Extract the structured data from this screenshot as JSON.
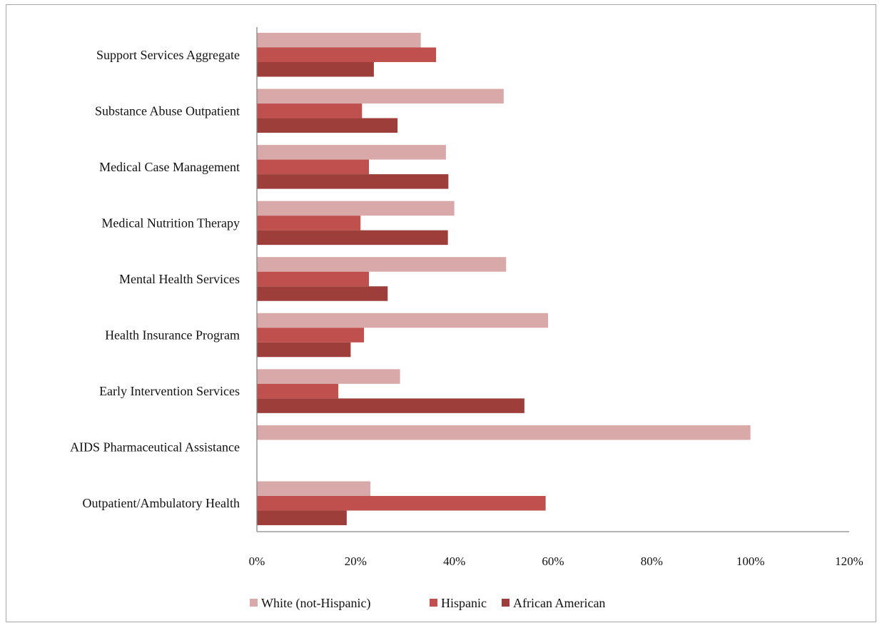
{
  "chart_data": {
    "type": "bar",
    "orientation": "horizontal",
    "categories": [
      "Outpatient/Ambulatory Health",
      "AIDS Pharmaceutical Assistance",
      "Early Intervention Services",
      "Health Insurance Program",
      "Mental Health Services",
      "Medical Nutrition Therapy",
      "Medical Case Management",
      "Substance Abuse Outpatient",
      "Support Services Aggregate "
    ],
    "series": [
      {
        "name": "White (not-Hispanic)",
        "color": "#d9a9a9",
        "values": [
          0.23,
          1.0,
          0.29,
          0.59,
          0.505,
          0.4,
          0.383,
          0.5,
          0.332
        ]
      },
      {
        "name": "Hispanic",
        "color": "#c0504d",
        "values": [
          0.585,
          0,
          0.165,
          0.217,
          0.227,
          0.21,
          0.227,
          0.213,
          0.363
        ]
      },
      {
        "name": "African American",
        "color": "#9e3e3b",
        "values": [
          0.182,
          0,
          0.542,
          0.19,
          0.265,
          0.387,
          0.388,
          0.285,
          0.237
        ]
      }
    ],
    "xlim": [
      0,
      1.2
    ],
    "xticks": [
      "0%",
      "20%",
      "40%",
      "60%",
      "80%",
      "100%",
      "120%"
    ],
    "grid": false,
    "legend_position": "bottom",
    "title": "",
    "xlabel": "",
    "ylabel": ""
  }
}
